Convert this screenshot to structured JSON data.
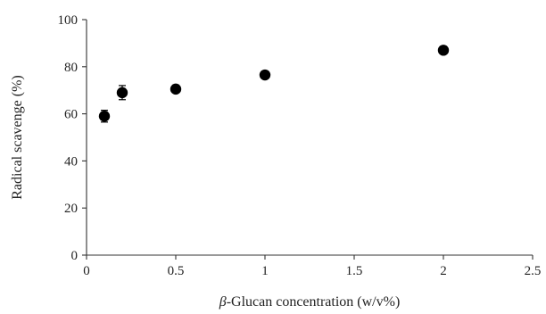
{
  "chart_data": {
    "type": "scatter",
    "title": "",
    "xlabel_symbol": "β",
    "xlabel_rest": "-Glucan concentration (w/v%)",
    "ylabel": "Radical scavenge (%)",
    "xlim": [
      0,
      2.5
    ],
    "ylim": [
      0,
      100
    ],
    "x_ticks": [
      0,
      0.5,
      1,
      1.5,
      2,
      2.5
    ],
    "x_tick_labels": [
      "0",
      "0.5",
      "1",
      "1.5",
      "2",
      "2.5"
    ],
    "y_ticks": [
      0,
      20,
      40,
      60,
      80,
      100
    ],
    "y_tick_labels": [
      "0",
      "20",
      "40",
      "60",
      "80",
      "100"
    ],
    "grid": false,
    "legend": "none",
    "points": [
      {
        "x": 0.1,
        "y": 59.0,
        "err": 2.5
      },
      {
        "x": 0.2,
        "y": 69.0,
        "err": 3.0
      },
      {
        "x": 0.5,
        "y": 70.5,
        "err": 0.8
      },
      {
        "x": 1.0,
        "y": 76.5,
        "err": 0.8
      },
      {
        "x": 2.0,
        "y": 87.0,
        "err": 0.8
      }
    ],
    "marker_color": "#000000"
  }
}
